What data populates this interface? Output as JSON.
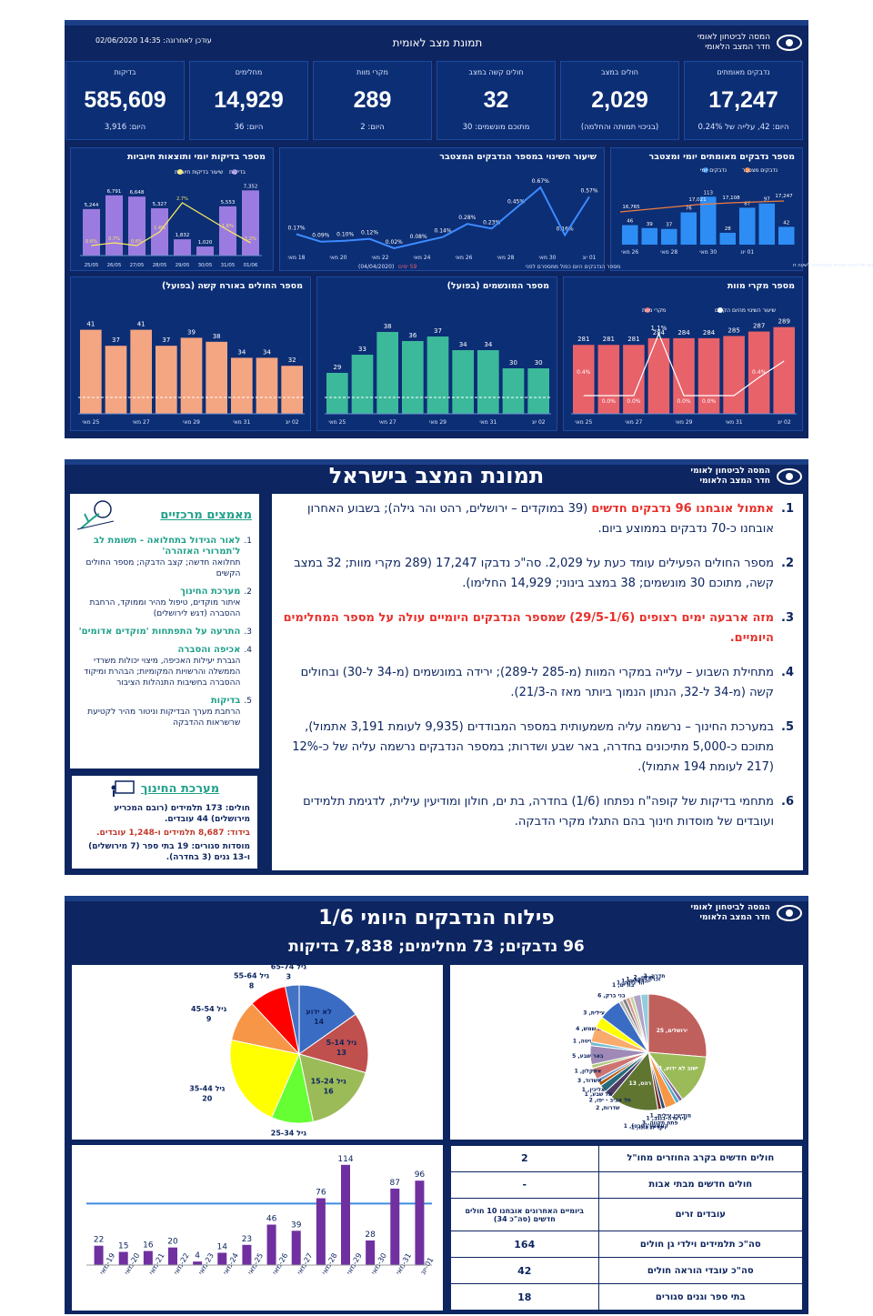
{
  "s1": {
    "org_line1": "המסה לביטחון לאומי",
    "org_line2": "חדר המצב הלאומי",
    "title": "תמונת מצב לאומית",
    "updated": "עודכן לאחרונה: 14:35 02/06/2020",
    "kpis": [
      {
        "label": "נדבקים מאומתים",
        "value": "17,247",
        "sub": "היום: 42, עלייה של 0.24%"
      },
      {
        "label": "חולים במצב",
        "value": "2,029",
        "sub": "(בניכוי תמותה והחלמה)"
      },
      {
        "label": "חולים קשה במצב",
        "value": "32",
        "sub": "מתוכם מונשמים: 30"
      },
      {
        "label": "מקרי מוות",
        "value": "289",
        "sub": "היום: 2"
      },
      {
        "label": "מחלימים",
        "value": "14,929",
        "sub": "היום: 36"
      },
      {
        "label": "בדיקות",
        "value": "585,609",
        "sub": "היום: 3,916"
      }
    ],
    "p_conf": {
      "title": "מספר נדבקים מאומתים יומי ומצטבר",
      "legend": [
        "נדבקים מצטבר",
        "נדבקים יומי"
      ],
      "foot": "הנתונים של היום הנוכחי מעודכנים לשעה זו",
      "daily": [
        46,
        39,
        37,
        76,
        113,
        28,
        87,
        97,
        42
      ],
      "cum_labels": [
        "16,765",
        "17,021",
        "17,108",
        "17,247"
      ],
      "xticks": [
        "26 מאי",
        "28 מאי",
        "30 מאי",
        "01 יונ"
      ]
    },
    "p_rate": {
      "title": "שיעור השינוי במספר הנדבקים המצטבר",
      "labels": [
        "0.17%",
        "0.09%",
        "0.10%",
        "0.12%",
        "0.02%",
        "0.08%",
        "0.14%",
        "0.28%",
        "0.23%",
        "0.45%",
        "0.67%",
        "0.16%",
        "0.57%"
      ],
      "values": [
        0.17,
        0.09,
        0.1,
        0.12,
        0.02,
        0.08,
        0.14,
        0.28,
        0.23,
        0.45,
        0.67,
        0.16,
        0.57
      ],
      "xticks": [
        "18 מאי",
        "20 מאי",
        "22 מאי",
        "24 מאי",
        "26 מאי",
        "28 מאי",
        "30 מאי",
        "01 יונ"
      ],
      "foot1": "מספר הנדבקים היום כפול ממספרם לפני",
      "foot_days": "59 ימים",
      "foot_date": "(04/04/2020)"
    },
    "p_tests": {
      "title": "מספר בדיקות יומי ותוצאות חיוביות",
      "legend": [
        "שיעור בדיקות חיוביות",
        "בדיקות"
      ],
      "values": [
        5244,
        6791,
        6648,
        5327,
        1832,
        1020,
        5553,
        7352
      ],
      "labels": [
        "5,244",
        "6,791",
        "6,648",
        "5,327",
        "1,832",
        "1,020",
        "5,553",
        "7,352"
      ],
      "pct": [
        "0.6%",
        "0.7%",
        "0.6%",
        "1.4%",
        "2.7%",
        "1.6%",
        "1.2%"
      ],
      "xticks": [
        "25/05",
        "26/05",
        "27/05",
        "28/05",
        "29/05",
        "30/05",
        "31/05",
        "01/06"
      ]
    },
    "p_deaths": {
      "title": "מספר מקרי מוות",
      "legend": [
        "שיעור השינוי מהיום הקודם",
        "מקרי מוות"
      ],
      "values": [
        281,
        281,
        281,
        284,
        284,
        284,
        285,
        287,
        289
      ],
      "labels": [
        "281",
        "281",
        "281",
        "284",
        "284",
        "284",
        "285",
        "287",
        "289"
      ],
      "peak": "1.1%",
      "pcts": [
        "0.4%",
        "0.0%",
        "0.0%",
        "0.0%",
        "0.0%",
        "0.4%"
      ],
      "xticks": [
        "25 מאי",
        "27 מאי",
        "29 מאי",
        "31 מאי",
        "02 יונ"
      ]
    },
    "p_vent": {
      "title": "מספר המונשמים (בפועל)",
      "values": [
        29,
        33,
        38,
        36,
        37,
        34,
        34,
        30,
        30
      ],
      "labels": [
        "29",
        "33",
        "38",
        "36",
        "37",
        "34",
        "34",
        "30",
        "30"
      ],
      "xticks": [
        "25 מאי",
        "27 מאי",
        "29 מאי",
        "31 מאי",
        "02 יונ"
      ]
    },
    "p_severe": {
      "title": "מספר החולים באורח קשה (בפועל)",
      "values": [
        41,
        37,
        41,
        37,
        39,
        38,
        34,
        34,
        32
      ],
      "labels": [
        "41",
        "37",
        "41",
        "37",
        "39",
        "38",
        "34",
        "34",
        "32"
      ],
      "xticks": [
        "25 מאי",
        "27 מאי",
        "29 מאי",
        "31 מאי",
        "02 יונ"
      ]
    }
  },
  "s2": {
    "title": "תמונת המצב בישראל",
    "org_line1": "המסה לביטחון לאומי",
    "org_line2": "חדר המצב הלאומי",
    "points": [
      {
        "n": "1.",
        "red": "אתמול אובחנו 96 נדבקים חדשים",
        "text": " (39 במוקדים – ירושלים, רהט והר גילה); בשבוע האחרון אובחנו כ-70 נדבקים בממוצע ביום."
      },
      {
        "n": "2.",
        "red": "",
        "text": "מספר החולים הפעילים עומד כעת על 2,029. סה\"כ נדבקו 17,247 (289 מקרי מוות; 32 במצב קשה, מתוכם 30 מונשמים; 38 במצב בינוני; 14,929 החלימו)."
      },
      {
        "n": "3.",
        "red": "מזה ארבעה ימים רצופים (29/5-1/6) שמספר הנדבקים היומיים עולה על מספר המחלימים היומיים.",
        "text": ""
      },
      {
        "n": "4.",
        "red": "",
        "text": "מתחילת השבוע – עלייה במקרי המוות (מ-285 ל-289); ירידה במונשמים (מ-34 ל-30) ובחולים קשה (מ-34 ל-32, הנתון הנמוך ביותר מאז ה-21/3)."
      },
      {
        "n": "5.",
        "red": "",
        "text": "במערכת החינוך – נרשמה עליה משמעותית במספר המבודדים (9,935 לעומת 3,191 אתמול), מתוכם כ-5,000 מתיכונים בחדרה, באר שבע ושדרות; במספר הנדבקים נרשמה עליה של כ-12% (217 לעומת 194 אתמול)."
      },
      {
        "n": "6.",
        "red": "",
        "text": "מתחמי בדיקות של קופה\"ח נפתחו (1/6) בחדרה, בת ים, חולון ומודיעין עילית, לדגימת תלמידים ועובדים של מוסדות חינוך בהם התגלו מקרי הדבקה."
      }
    ],
    "focus_title": "מאמצים מרכזיים",
    "focus": [
      {
        "n": "1.",
        "h": "לאור הגידול בתחלואה - תשומת לב ל'תמרורי האזהרה'",
        "t": "תחלואה חדשה; קצב הדבקה; מספר החולים הקשים"
      },
      {
        "n": "2.",
        "h": "מערכת החינוך",
        "t": "איתור מוקדים, טיפול מהיר וממוקד, הרחבת ההסברה (דגש לירושלים)"
      },
      {
        "n": "3.",
        "h": "התרעה על התפתחות 'מוקדים אדומים'",
        "t": ""
      },
      {
        "n": "4.",
        "h": "אכיפה והסברה",
        "t": "הגברת יעילות האכיפה, מיצוי יכולות משרדי הממשלה והרשויות המקומיות; הבהרת ומיקוד ההסברה בחשיבות התנהלות הציבור"
      },
      {
        "n": "5.",
        "h": "בדיקות",
        "t": "הרחבת מערך הבדיקות וניטור מהיר לקטיעת שרשראות ההדבקה"
      }
    ],
    "edu_title": "מערכת החינוך",
    "edu": [
      "חולים: 173 תלמידים (רובם המכריע מירושלים) 44 עובדים.",
      "בידוד: 8,687 תלמידים ו-1,248 עובדים.",
      "מוסדות סגורים: 19 בתי ספר (7 מירושלים) ו-13 גנים (3 בחדרה)."
    ]
  },
  "s3": {
    "title": "פילוח הנדבקים היומי 1/6",
    "subtitle": "96 נדבקים; 73 מחלימים; 7,838 בדיקות",
    "org_line1": "המסה לביטחון לאומי",
    "org_line2": "חדר המצב הלאומי",
    "age_pie": [
      {
        "label": "לא ידוע",
        "value": 14,
        "color": "#3b6cc4"
      },
      {
        "label": "גיל 5-14",
        "value": 13,
        "color": "#c0504d"
      },
      {
        "label": "גיל 15-24",
        "value": 16,
        "color": "#9bbb59"
      },
      {
        "label": "גיל 25-34",
        "value": 9,
        "color": "#66ff33"
      },
      {
        "label": "גיל 35-44",
        "value": 20,
        "color": "#ffff00"
      },
      {
        "label": "גיל 45-54",
        "value": 9,
        "color": "#f79646"
      },
      {
        "label": "גיל 55-64",
        "value": 8,
        "color": "#ff0000"
      },
      {
        "label": "גיל 65-74",
        "value": 3,
        "color": "#4472c4"
      }
    ],
    "city_pie": [
      {
        "label": "ירושלים",
        "value": 25,
        "color": "#c0605d"
      },
      {
        "label": "ישוב לא ידוע",
        "value": 13,
        "color": "#9bbb59"
      },
      {
        "label": "מודיעין עילית",
        "value": 1,
        "color": "#8064a2"
      },
      {
        "label": "עירערה-בנגב",
        "value": 1,
        "color": "#4bacc6"
      },
      {
        "label": "פתח תקווה",
        "value": 3,
        "color": "#f79646"
      },
      {
        "label": "קוואעין (שבט)",
        "value": 1,
        "color": "#2c4d75"
      },
      {
        "label": "קרית אונו",
        "value": 1,
        "color": "#772c2a"
      },
      {
        "label": "רהט",
        "value": 13,
        "color": "#5f7530"
      },
      {
        "label": "שדרות",
        "value": 2,
        "color": "#4d3b62"
      },
      {
        "label": "תל אביב - יפו",
        "value": 2,
        "color": "#276a7c"
      },
      {
        "label": "תל שבע",
        "value": 1,
        "color": "#b65708"
      },
      {
        "label": "אליכין",
        "value": 1,
        "color": "#729aca"
      },
      {
        "label": "אשדוד",
        "value": 3,
        "color": "#cd7371"
      },
      {
        "label": "אשקלון",
        "value": 1,
        "color": "#afc97a"
      },
      {
        "label": "באר שבע",
        "value": 5,
        "color": "#9f8ab7"
      },
      {
        "label": "בית השיטה",
        "value": 1,
        "color": "#6fbdd1"
      },
      {
        "label": "בית שמש",
        "value": 4,
        "color": "#f9ab6b"
      },
      {
        "label": "ביתר עילית",
        "value": 3,
        "color": "#ffff00"
      },
      {
        "label": "בני ברק",
        "value": 6,
        "color": "#3b6cc4"
      },
      {
        "label": "בת ים",
        "value": 1,
        "color": "#b7b7b7"
      },
      {
        "label": "הר גילה",
        "value": 1,
        "color": "#7f7f7f"
      },
      {
        "label": "הרצליה",
        "value": 1,
        "color": "#d99694"
      },
      {
        "label": "זכרון יעקב",
        "value": 1,
        "color": "#c3d69b"
      },
      {
        "label": "חולון",
        "value": 2,
        "color": "#b3a2c7"
      },
      {
        "label": "חדרה",
        "value": 2,
        "color": "#92cddc"
      }
    ],
    "bar": {
      "values": [
        22,
        15,
        16,
        20,
        4,
        14,
        23,
        46,
        39,
        76,
        114,
        28,
        87,
        96
      ],
      "xticks": [
        "19-מאי",
        "20-מאי",
        "21-מאי",
        "22-מאי",
        "23-מאי",
        "24-מאי",
        "25-מאי",
        "26-מאי",
        "27-מאי",
        "28-מאי",
        "29-מאי",
        "30-מאי",
        "31-מאי",
        "01-יונ"
      ],
      "ref": 70
    },
    "table": [
      {
        "k": "חולים חדשים בקרב החוזרים מחו\"ל",
        "v": "2"
      },
      {
        "k": "חולים חדשים מבתי אבות",
        "v": "-"
      },
      {
        "k": "עובדים זרים",
        "v": "ביומיים האחרונים אובחנו 10 חולים חדשים (סה\"כ 34)"
      },
      {
        "k": "סה\"כ תלמידים וילדי גן חולים",
        "v": "164"
      },
      {
        "k": "סה\"כ עובדי הוראה חולים",
        "v": "42"
      },
      {
        "k": "בתי ספר וגנים סגורים",
        "v": "18"
      }
    ]
  }
}
